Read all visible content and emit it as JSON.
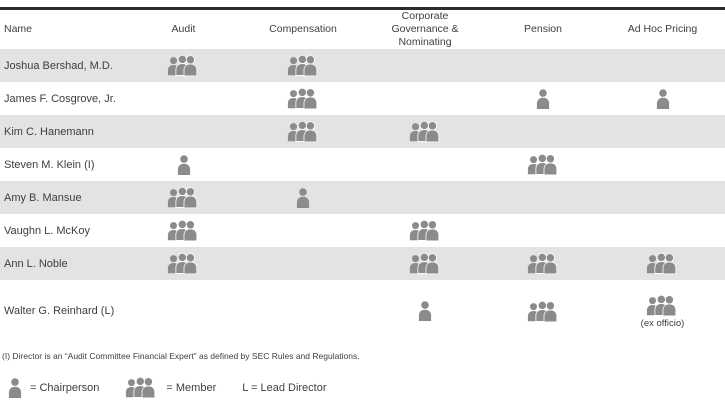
{
  "table": {
    "columns": [
      "Name",
      "Audit",
      "Compensation",
      "Corporate\nGovernance & Nominating",
      "Pension",
      "Ad Hoc Pricing"
    ],
    "rows": [
      {
        "name": "Joshua Bershad, M.D.",
        "cells": [
          {
            "role": "member"
          },
          {
            "role": "member"
          },
          null,
          null,
          null
        ]
      },
      {
        "name": "James F. Cosgrove, Jr.",
        "cells": [
          null,
          {
            "role": "member"
          },
          null,
          {
            "role": "chairperson"
          },
          {
            "role": "chairperson"
          }
        ]
      },
      {
        "name": "Kim C. Hanemann",
        "cells": [
          null,
          {
            "role": "member"
          },
          {
            "role": "member"
          },
          null,
          null
        ]
      },
      {
        "name": "Steven M. Klein (I)",
        "cells": [
          {
            "role": "chairperson"
          },
          null,
          null,
          {
            "role": "member"
          },
          null
        ]
      },
      {
        "name": "Amy B. Mansue",
        "cells": [
          {
            "role": "member"
          },
          {
            "role": "chairperson"
          },
          null,
          null,
          null
        ]
      },
      {
        "name": "Vaughn L. McKoy",
        "cells": [
          {
            "role": "member"
          },
          null,
          {
            "role": "member"
          },
          null,
          null
        ]
      },
      {
        "name": "Ann L. Noble",
        "cells": [
          {
            "role": "member"
          },
          null,
          {
            "role": "member"
          },
          {
            "role": "member"
          },
          {
            "role": "member"
          }
        ]
      },
      {
        "name": "Walter G. Reinhard (L)",
        "cells": [
          null,
          null,
          {
            "role": "chairperson"
          },
          {
            "role": "member"
          },
          {
            "role": "member",
            "note": "(ex officio)"
          }
        ]
      }
    ]
  },
  "footnote": "(I) Director is an “Audit Committee Financial Expert” as defined by SEC Rules and Regulations.",
  "legend": [
    {
      "icon": "chairperson",
      "label": "= Chairperson"
    },
    {
      "icon": "member",
      "label": "= Member"
    },
    {
      "icon": null,
      "label": "L = Lead Director"
    }
  ],
  "colors": {
    "row_stripe": "#e3e3e3",
    "icon_gray": "#8b8b8b",
    "text_gray": "#3e3e3e",
    "top_border": "#2d2d2d"
  }
}
